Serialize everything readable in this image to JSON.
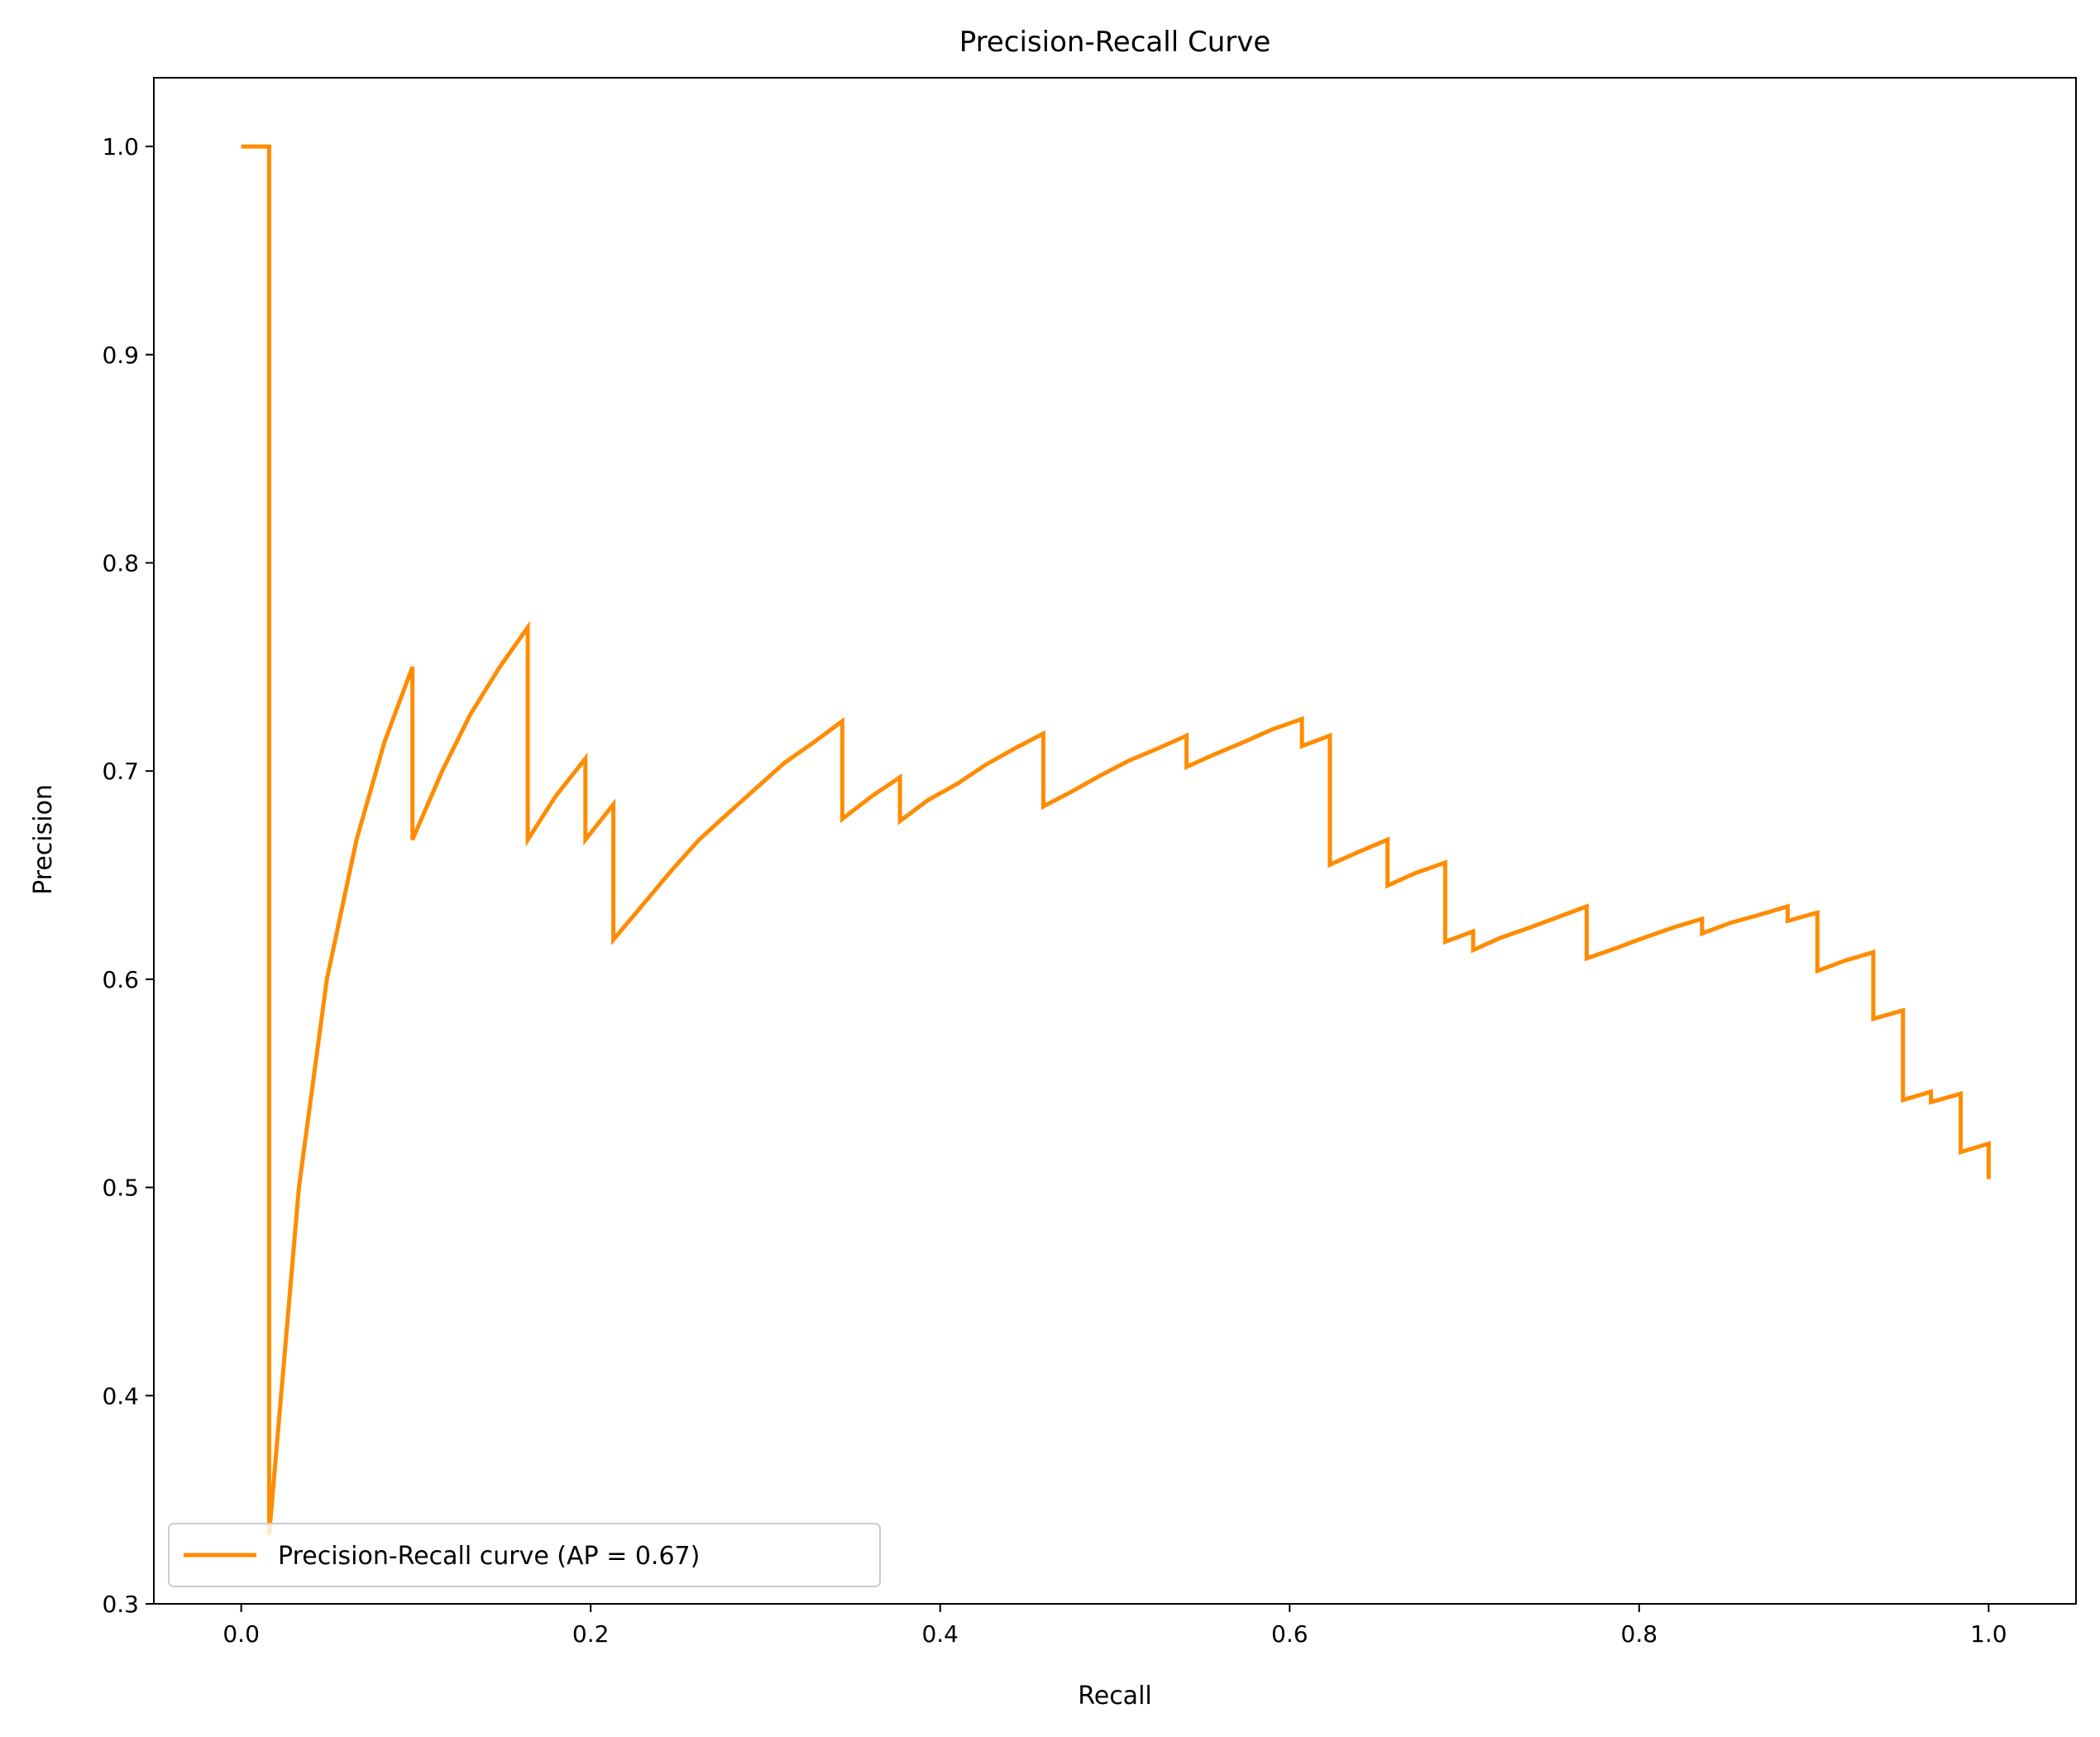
{
  "chart_data": {
    "type": "line",
    "title": "Precision-Recall Curve",
    "xlabel": "Recall",
    "ylabel": "Precision",
    "xlim": [
      -0.05,
      1.05
    ],
    "ylim": [
      0.3,
      1.033
    ],
    "grid": false,
    "legend_position": "lower-left",
    "x_ticks": [
      0.0,
      0.2,
      0.4,
      0.6,
      0.8,
      1.0
    ],
    "x_tick_labels": [
      "0.0",
      "0.2",
      "0.4",
      "0.6",
      "0.8",
      "1.0"
    ],
    "y_ticks": [
      0.3,
      0.4,
      0.5,
      0.6,
      0.7,
      0.8,
      0.9,
      1.0
    ],
    "y_tick_labels": [
      "0.3",
      "0.4",
      "0.5",
      "0.6",
      "0.7",
      "0.8",
      "0.9",
      "1.0"
    ],
    "series": [
      {
        "name": "Precision-Recall curve (AP = 0.67)",
        "color": "#ff8c00",
        "x": [
          0.0,
          0.016,
          0.016,
          0.033,
          0.049,
          0.066,
          0.082,
          0.098,
          0.098,
          0.115,
          0.131,
          0.148,
          0.164,
          0.164,
          0.18,
          0.197,
          0.197,
          0.213,
          0.213,
          0.23,
          0.246,
          0.262,
          0.279,
          0.295,
          0.311,
          0.328,
          0.344,
          0.344,
          0.361,
          0.377,
          0.377,
          0.393,
          0.41,
          0.426,
          0.443,
          0.459,
          0.459,
          0.475,
          0.492,
          0.508,
          0.525,
          0.541,
          0.541,
          0.557,
          0.574,
          0.59,
          0.607,
          0.607,
          0.623,
          0.623,
          0.639,
          0.656,
          0.656,
          0.672,
          0.689,
          0.689,
          0.705,
          0.705,
          0.721,
          0.738,
          0.754,
          0.77,
          0.77,
          0.787,
          0.803,
          0.82,
          0.836,
          0.836,
          0.852,
          0.869,
          0.885,
          0.885,
          0.902,
          0.902,
          0.918,
          0.934,
          0.934,
          0.951,
          0.951,
          0.967,
          0.967,
          0.984,
          0.984,
          1.0,
          1.0
        ],
        "y": [
          1.0,
          1.0,
          0.333,
          0.5,
          0.6,
          0.667,
          0.714,
          0.75,
          0.667,
          0.7,
          0.727,
          0.75,
          0.769,
          0.667,
          0.688,
          0.706,
          0.667,
          0.684,
          0.619,
          0.636,
          0.652,
          0.667,
          0.68,
          0.692,
          0.704,
          0.714,
          0.724,
          0.677,
          0.688,
          0.697,
          0.676,
          0.686,
          0.694,
          0.703,
          0.711,
          0.718,
          0.683,
          0.69,
          0.698,
          0.705,
          0.711,
          0.717,
          0.702,
          0.708,
          0.714,
          0.72,
          0.725,
          0.712,
          0.717,
          0.655,
          0.661,
          0.667,
          0.645,
          0.651,
          0.656,
          0.618,
          0.623,
          0.614,
          0.62,
          0.625,
          0.63,
          0.635,
          0.61,
          0.615,
          0.62,
          0.625,
          0.629,
          0.622,
          0.627,
          0.631,
          0.635,
          0.628,
          0.632,
          0.604,
          0.609,
          0.613,
          0.581,
          0.585,
          0.542,
          0.546,
          0.541,
          0.545,
          0.517,
          0.521,
          0.504
        ]
      }
    ]
  }
}
